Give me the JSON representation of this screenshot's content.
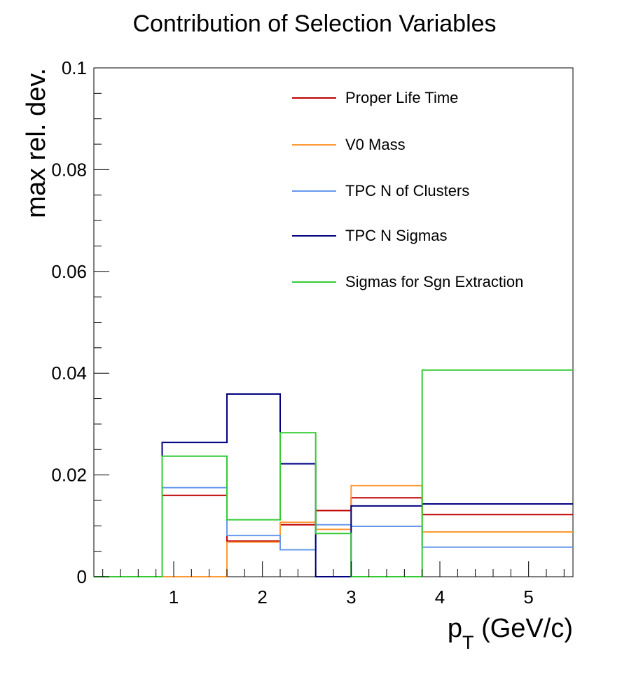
{
  "chart_data": {
    "type": "line",
    "step": true,
    "title": "Contribution of Selection Variables",
    "xlabel_main": "p",
    "xlabel_sub": "T",
    "xlabel_rest": " (GeV/c)",
    "ylabel": "max rel. dev.",
    "xlim": [
      0.1,
      5.5
    ],
    "ylim": [
      0,
      0.1
    ],
    "x_ticks": [
      1,
      2,
      3,
      4,
      5
    ],
    "x_tick_labels": [
      "1",
      "2",
      "3",
      "4",
      "5"
    ],
    "y_ticks": [
      0,
      0.02,
      0.04,
      0.06,
      0.08,
      0.1
    ],
    "y_tick_labels": [
      "0",
      "0.02",
      "0.04",
      "0.06",
      "0.08",
      "0.1"
    ],
    "bin_edges": [
      0.1,
      0.87,
      1.6,
      2.2,
      2.6,
      3.0,
      3.8,
      5.5
    ],
    "legend_position": "top-right",
    "grid": false,
    "series": [
      {
        "name": "Proper Life Time",
        "color": "#c00000",
        "values": [
          0,
          0.016,
          0.007,
          0.0102,
          0.013,
          0.0155,
          0.0122
        ]
      },
      {
        "name": "V0 Mass",
        "color": "#ff9933",
        "values": [
          0,
          0,
          0.0068,
          0.0107,
          0.0093,
          0.0179,
          0.0088
        ]
      },
      {
        "name": "TPC N of Clusters",
        "color": "#6699ee",
        "values": [
          0,
          0.0175,
          0.0081,
          0.0053,
          0.0102,
          0.0099,
          0.0058
        ]
      },
      {
        "name": "TPC N Sigmas",
        "color": "#000080",
        "values": [
          0,
          0.0264,
          0.0359,
          0.0222,
          0,
          0.0139,
          0.0143
        ]
      },
      {
        "name": "Sigmas for Sgn Extraction",
        "color": "#33cc33",
        "values": [
          0,
          0.0237,
          0.0112,
          0.0283,
          0.0085,
          0,
          0.0406
        ]
      }
    ]
  }
}
